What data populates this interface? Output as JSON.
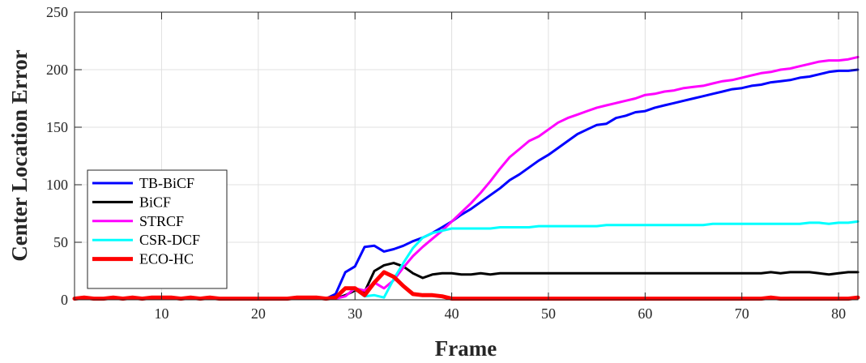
{
  "chart_data": {
    "type": "line",
    "title": "",
    "xlabel": "Frame",
    "ylabel": "Center Location Error",
    "xlim": [
      1,
      82
    ],
    "ylim": [
      0,
      250
    ],
    "xticks": [
      10,
      20,
      30,
      40,
      50,
      60,
      70,
      80
    ],
    "yticks": [
      0,
      50,
      100,
      150,
      200,
      250
    ],
    "grid": true,
    "legend_position": "bottom-left",
    "series": [
      {
        "name": "TB-BiCF",
        "color": "#0000ff",
        "x": [
          1,
          2,
          3,
          4,
          5,
          6,
          7,
          8,
          9,
          10,
          11,
          12,
          13,
          14,
          15,
          16,
          17,
          18,
          19,
          20,
          21,
          22,
          23,
          24,
          25,
          26,
          27,
          28,
          29,
          30,
          31,
          32,
          33,
          34,
          35,
          36,
          37,
          38,
          39,
          40,
          41,
          42,
          43,
          44,
          45,
          46,
          47,
          48,
          49,
          50,
          51,
          52,
          53,
          54,
          55,
          56,
          57,
          58,
          59,
          60,
          61,
          62,
          63,
          64,
          65,
          66,
          67,
          68,
          69,
          70,
          71,
          72,
          73,
          74,
          75,
          76,
          77,
          78,
          79,
          80,
          81,
          82
        ],
        "y": [
          1,
          1,
          1,
          1,
          1,
          1,
          1,
          1,
          1,
          1,
          1,
          1,
          1,
          1,
          1,
          1,
          1,
          1,
          1,
          1,
          1,
          1,
          1,
          1,
          1,
          1,
          1,
          5,
          24,
          29,
          46,
          47,
          42,
          44,
          47,
          51,
          54,
          58,
          63,
          68,
          74,
          79,
          85,
          91,
          97,
          104,
          109,
          115,
          121,
          126,
          132,
          138,
          144,
          148,
          152,
          153,
          158,
          160,
          163,
          164,
          167,
          169,
          171,
          173,
          175,
          177,
          179,
          181,
          183,
          184,
          186,
          187,
          189,
          190,
          191,
          193,
          194,
          196,
          198,
          199,
          199,
          200
        ]
      },
      {
        "name": "BiCF",
        "color": "#000000",
        "x": [
          1,
          2,
          3,
          4,
          5,
          6,
          7,
          8,
          9,
          10,
          11,
          12,
          13,
          14,
          15,
          16,
          17,
          18,
          19,
          20,
          21,
          22,
          23,
          24,
          25,
          26,
          27,
          28,
          29,
          30,
          31,
          32,
          33,
          34,
          35,
          36,
          37,
          38,
          39,
          40,
          41,
          42,
          43,
          44,
          45,
          46,
          47,
          48,
          49,
          50,
          51,
          52,
          53,
          54,
          55,
          56,
          57,
          58,
          59,
          60,
          61,
          62,
          63,
          64,
          65,
          66,
          67,
          68,
          69,
          70,
          71,
          72,
          73,
          74,
          75,
          76,
          77,
          78,
          79,
          80,
          81,
          82
        ],
        "y": [
          1,
          1,
          1,
          1,
          1,
          1,
          1,
          1,
          1,
          1,
          1,
          1,
          1,
          1,
          1,
          1,
          1,
          1,
          1,
          1,
          1,
          1,
          1,
          1,
          1,
          1,
          1,
          1,
          4,
          8,
          7,
          25,
          30,
          32,
          29,
          23,
          19,
          22,
          23,
          23,
          22,
          22,
          23,
          22,
          23,
          23,
          23,
          23,
          23,
          23,
          23,
          23,
          23,
          23,
          23,
          23,
          23,
          23,
          23,
          23,
          23,
          23,
          23,
          23,
          23,
          23,
          23,
          23,
          23,
          23,
          23,
          23,
          24,
          23,
          24,
          24,
          24,
          23,
          22,
          23,
          24,
          24
        ]
      },
      {
        "name": "STRCF",
        "color": "#ff00ff",
        "x": [
          1,
          2,
          3,
          4,
          5,
          6,
          7,
          8,
          9,
          10,
          11,
          12,
          13,
          14,
          15,
          16,
          17,
          18,
          19,
          20,
          21,
          22,
          23,
          24,
          25,
          26,
          27,
          28,
          29,
          30,
          31,
          32,
          33,
          34,
          35,
          36,
          37,
          38,
          39,
          40,
          41,
          42,
          43,
          44,
          45,
          46,
          47,
          48,
          49,
          50,
          51,
          52,
          53,
          54,
          55,
          56,
          57,
          58,
          59,
          60,
          61,
          62,
          63,
          64,
          65,
          66,
          67,
          68,
          69,
          70,
          71,
          72,
          73,
          74,
          75,
          76,
          77,
          78,
          79,
          80,
          81,
          82
        ],
        "y": [
          1,
          1,
          1,
          1,
          1,
          1,
          1,
          1,
          1,
          1,
          1,
          1,
          1,
          1,
          1,
          1,
          1,
          1,
          1,
          1,
          1,
          1,
          1,
          1,
          1,
          1,
          1,
          1,
          3,
          10,
          8,
          15,
          10,
          17,
          28,
          38,
          46,
          53,
          60,
          68,
          76,
          84,
          93,
          103,
          114,
          124,
          131,
          138,
          142,
          148,
          154,
          158,
          161,
          164,
          167,
          169,
          171,
          173,
          175,
          178,
          179,
          181,
          182,
          184,
          185,
          186,
          188,
          190,
          191,
          193,
          195,
          197,
          198,
          200,
          201,
          203,
          205,
          207,
          208,
          208,
          209,
          211
        ]
      },
      {
        "name": "CSR-DCF",
        "color": "#00ffff",
        "x": [
          1,
          2,
          3,
          4,
          5,
          6,
          7,
          8,
          9,
          10,
          11,
          12,
          13,
          14,
          15,
          16,
          17,
          18,
          19,
          20,
          21,
          22,
          23,
          24,
          25,
          26,
          27,
          28,
          29,
          30,
          31,
          32,
          33,
          34,
          35,
          36,
          37,
          38,
          39,
          40,
          41,
          42,
          43,
          44,
          45,
          46,
          47,
          48,
          49,
          50,
          51,
          52,
          53,
          54,
          55,
          56,
          57,
          58,
          59,
          60,
          61,
          62,
          63,
          64,
          65,
          66,
          67,
          68,
          69,
          70,
          71,
          72,
          73,
          74,
          75,
          76,
          77,
          78,
          79,
          80,
          81,
          82
        ],
        "y": [
          1,
          1,
          1,
          1,
          1,
          1,
          1,
          1,
          1,
          1,
          1,
          1,
          1,
          1,
          1,
          1,
          1,
          1,
          1,
          1,
          1,
          1,
          1,
          1,
          1,
          1,
          1,
          1,
          10,
          9,
          3,
          4,
          2,
          18,
          32,
          45,
          54,
          58,
          60,
          62,
          62,
          62,
          62,
          62,
          63,
          63,
          63,
          63,
          64,
          64,
          64,
          64,
          64,
          64,
          64,
          65,
          65,
          65,
          65,
          65,
          65,
          65,
          65,
          65,
          65,
          65,
          66,
          66,
          66,
          66,
          66,
          66,
          66,
          66,
          66,
          66,
          67,
          67,
          66,
          67,
          67,
          68
        ]
      },
      {
        "name": "ECO-HC",
        "color": "#ff0000",
        "x": [
          1,
          2,
          3,
          4,
          5,
          6,
          7,
          8,
          9,
          10,
          11,
          12,
          13,
          14,
          15,
          16,
          17,
          18,
          19,
          20,
          21,
          22,
          23,
          24,
          25,
          26,
          27,
          28,
          29,
          30,
          31,
          32,
          33,
          34,
          35,
          36,
          37,
          38,
          39,
          40,
          41,
          42,
          43,
          44,
          45,
          46,
          47,
          48,
          49,
          50,
          51,
          52,
          53,
          54,
          55,
          56,
          57,
          58,
          59,
          60,
          61,
          62,
          63,
          64,
          65,
          66,
          67,
          68,
          69,
          70,
          71,
          72,
          73,
          74,
          75,
          76,
          77,
          78,
          79,
          80,
          81,
          82
        ],
        "y": [
          1,
          2,
          1,
          1,
          2,
          1,
          2,
          1,
          2,
          2,
          2,
          1,
          2,
          1,
          2,
          1,
          1,
          1,
          1,
          1,
          1,
          1,
          1,
          2,
          2,
          2,
          1,
          2,
          10,
          10,
          4,
          15,
          24,
          20,
          12,
          5,
          4,
          4,
          3,
          1,
          1,
          1,
          1,
          1,
          1,
          1,
          1,
          1,
          1,
          1,
          1,
          1,
          1,
          1,
          1,
          1,
          1,
          1,
          1,
          1,
          1,
          1,
          1,
          1,
          1,
          1,
          1,
          1,
          1,
          1,
          1,
          1,
          2,
          1,
          1,
          1,
          1,
          1,
          1,
          1,
          1,
          2
        ]
      }
    ]
  }
}
